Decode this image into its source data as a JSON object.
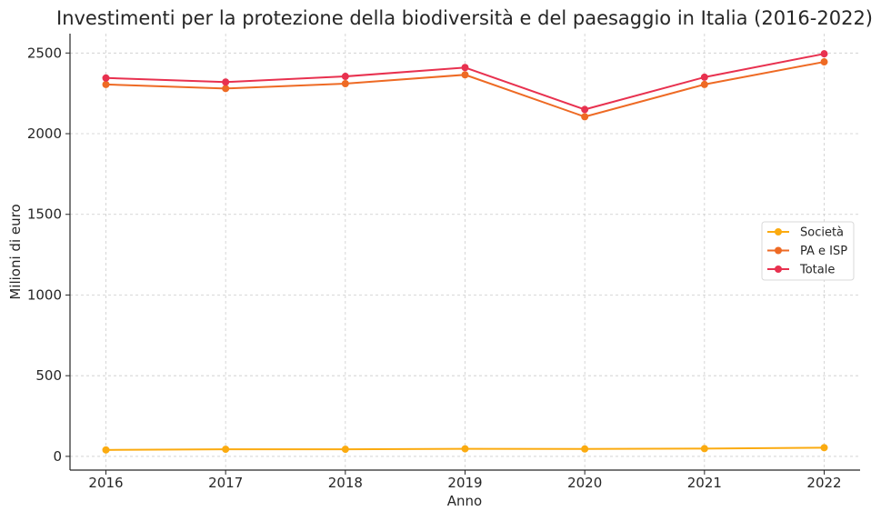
{
  "chart_data": {
    "type": "line",
    "title": "Investimenti per la protezione della biodiversità e del paesaggio in Italia (2016-2022)",
    "xlabel": "Anno",
    "ylabel": "Milioni di euro",
    "x": [
      2016,
      2017,
      2018,
      2019,
      2020,
      2021,
      2022
    ],
    "xlim": [
      2015.7,
      2022.3
    ],
    "ylim": [
      -85,
      2620
    ],
    "yticks": [
      0,
      500,
      1000,
      1500,
      2000,
      2500
    ],
    "grid": true,
    "legend_position": "center-right",
    "series": [
      {
        "name": "Società",
        "color": "#fbab10",
        "values": [
          40,
          44,
          44,
          47,
          46,
          48,
          54
        ]
      },
      {
        "name": "PA e ISP",
        "color": "#ee6a24",
        "values": [
          2305,
          2280,
          2310,
          2365,
          2105,
          2305,
          2445
        ]
      },
      {
        "name": "Totale",
        "color": "#e8314f",
        "values": [
          2345,
          2320,
          2355,
          2410,
          2150,
          2350,
          2495
        ]
      }
    ]
  }
}
